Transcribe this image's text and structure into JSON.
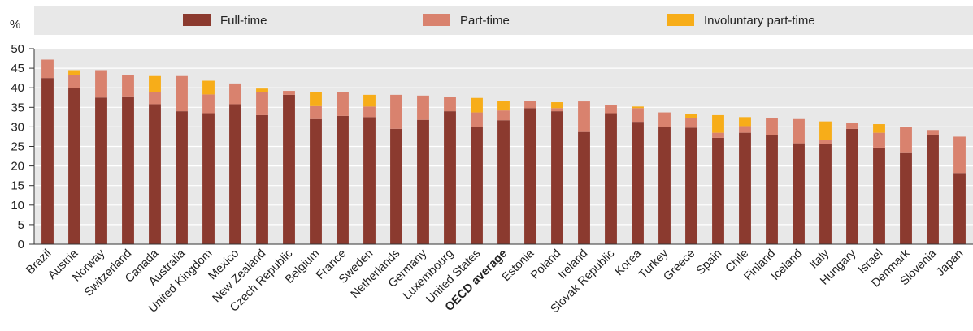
{
  "chart_data": {
    "type": "bar",
    "stacked": true,
    "ylabel": "%",
    "ylim": [
      0,
      50
    ],
    "yticks": [
      0,
      5,
      10,
      15,
      20,
      25,
      30,
      35,
      40,
      45,
      50
    ],
    "grid": true,
    "legend_position": "top",
    "categories": [
      "Brazil",
      "Austria",
      "Norway",
      "Switzerland",
      "Canada",
      "Australia",
      "United Kingdom",
      "Mexico",
      "New Zealand",
      "Czech Republic",
      "Belgium",
      "France",
      "Sweden",
      "Netherlands",
      "Germany",
      "Luxembourg",
      "United States",
      "OECD average",
      "Estonia",
      "Poland",
      "Ireland",
      "Slovak Republic",
      "Korea",
      "Turkey",
      "Greece",
      "Spain",
      "Chile",
      "Finland",
      "Iceland",
      "Italy",
      "Hungary",
      "Israel",
      "Denmark",
      "Slovenia",
      "Japan"
    ],
    "highlight_category": "OECD average",
    "series": [
      {
        "name": "Full-time",
        "color": "#8B3A2F",
        "values": [
          42.5,
          40.0,
          37.5,
          37.8,
          35.8,
          34.0,
          33.5,
          35.8,
          33.0,
          38.2,
          32.0,
          32.8,
          32.5,
          29.5,
          31.8,
          34.0,
          30.0,
          31.7,
          34.8,
          34.0,
          28.7,
          33.5,
          31.3,
          30.0,
          29.8,
          27.2,
          28.5,
          28.0,
          25.8,
          25.7,
          29.5,
          24.7,
          23.5,
          28.0,
          18.2
        ]
      },
      {
        "name": "Part-time",
        "color": "#D9826E",
        "values": [
          4.7,
          3.2,
          7.0,
          5.5,
          3.0,
          9.0,
          4.8,
          5.3,
          5.8,
          1.0,
          3.3,
          6.0,
          2.7,
          8.7,
          6.2,
          3.7,
          3.7,
          2.5,
          1.8,
          0.8,
          7.8,
          2.0,
          3.5,
          3.7,
          2.5,
          1.3,
          1.7,
          4.2,
          6.2,
          1.0,
          1.5,
          3.8,
          6.4,
          1.2,
          9.3
        ]
      },
      {
        "name": "Involuntary part-time",
        "color": "#F7AD19",
        "values": [
          0,
          1.3,
          0,
          0,
          4.2,
          0,
          3.5,
          0,
          1.0,
          0,
          3.7,
          0,
          3.0,
          0,
          0,
          0,
          3.7,
          2.5,
          0,
          1.5,
          0,
          0,
          0.4,
          0,
          0.9,
          4.5,
          2.3,
          0,
          0,
          4.7,
          0,
          2.2,
          0,
          0,
          0
        ]
      }
    ]
  }
}
